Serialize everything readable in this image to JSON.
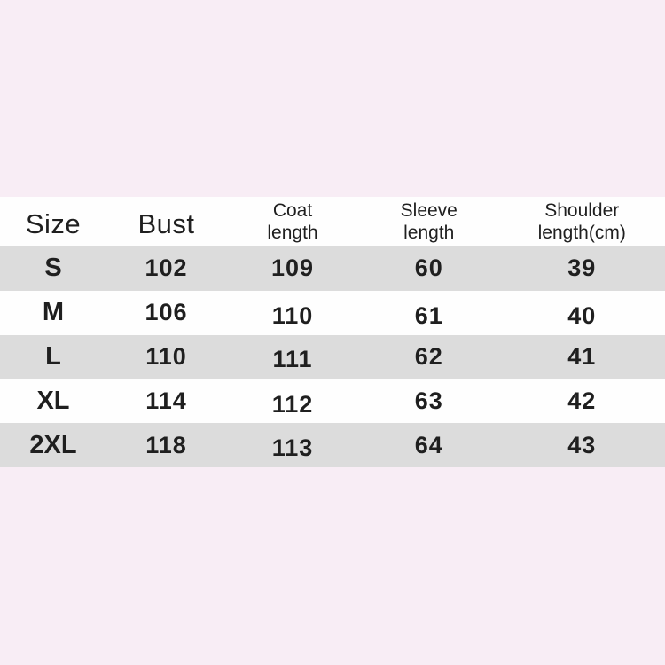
{
  "page": {
    "background_color": "#f8edf5"
  },
  "size_chart": {
    "colors": {
      "header_row": "#fefefe",
      "row_shaded": "#dcdcdc",
      "row_plain": "#fefefe",
      "text": "#1f1f1f"
    },
    "header": {
      "columns": [
        {
          "line1": "Size",
          "line2": ""
        },
        {
          "line1": "Bust",
          "line2": ""
        },
        {
          "line1": "Coat",
          "line2": "length"
        },
        {
          "line1": "Sleeve",
          "line2": "length"
        },
        {
          "line1": "Shoulder",
          "line2": "length(cm)"
        }
      ]
    },
    "rows": [
      {
        "size": "S",
        "bust": "102",
        "coat_length": "109",
        "sleeve_length": "60",
        "shoulder_length": "39"
      },
      {
        "size": "M",
        "bust": "106",
        "coat_length": "110",
        "sleeve_length": "61",
        "shoulder_length": "40"
      },
      {
        "size": "L",
        "bust": "110",
        "coat_length": "111",
        "sleeve_length": "62",
        "shoulder_length": "41"
      },
      {
        "size": "XL",
        "bust": "114",
        "coat_length": "112",
        "sleeve_length": "63",
        "shoulder_length": "42"
      },
      {
        "size": "2XL",
        "bust": "118",
        "coat_length": "113",
        "sleeve_length": "64",
        "shoulder_length": "43"
      }
    ]
  },
  "chart_data": {
    "type": "table",
    "title": "Garment size chart",
    "columns": [
      "Size",
      "Bust",
      "Coat length",
      "Sleeve length",
      "Shoulder length(cm)"
    ],
    "rows": [
      [
        "S",
        102,
        109,
        60,
        39
      ],
      [
        "M",
        106,
        110,
        61,
        40
      ],
      [
        "L",
        110,
        111,
        62,
        41
      ],
      [
        "XL",
        114,
        112,
        63,
        42
      ],
      [
        "2XL",
        118,
        113,
        64,
        43
      ]
    ],
    "units": "cm",
    "layout": {
      "row_striping": "alternating gray/white starting with gray on row S",
      "background": "light pink canvas, table full-width"
    }
  }
}
